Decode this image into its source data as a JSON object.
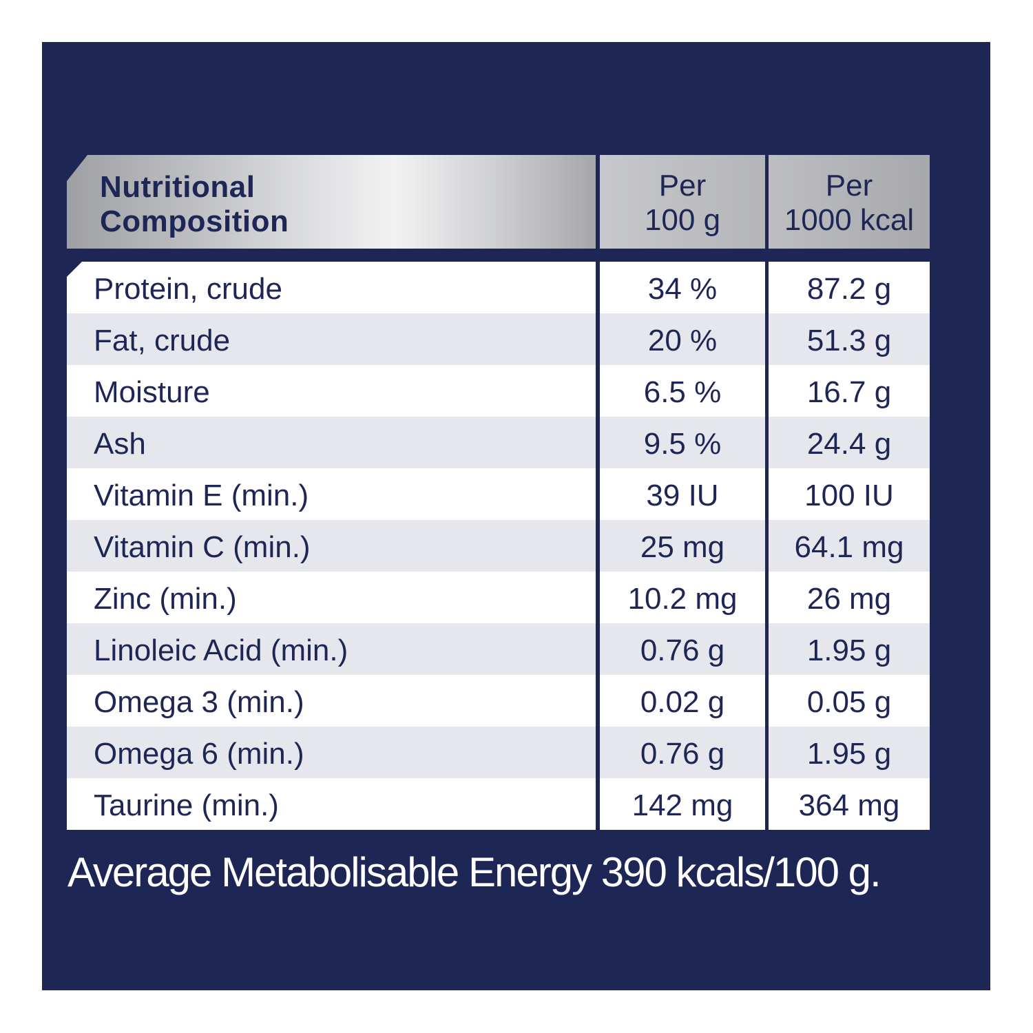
{
  "header": {
    "title_line1": "Nutritional",
    "title_line2": "Composition",
    "col2_line1": "Per",
    "col2_line2": "100 g",
    "col3_line1": "Per",
    "col3_line2": "1000 kcal"
  },
  "rows": [
    {
      "name": "Protein, crude",
      "per100g": "34 %",
      "per1000kcal": "87.2 g"
    },
    {
      "name": "Fat, crude",
      "per100g": "20 %",
      "per1000kcal": "51.3 g"
    },
    {
      "name": "Moisture",
      "per100g": "6.5 %",
      "per1000kcal": "16.7 g"
    },
    {
      "name": "Ash",
      "per100g": "9.5 %",
      "per1000kcal": "24.4 g"
    },
    {
      "name": "Vitamin E (min.)",
      "per100g": "39 IU",
      "per1000kcal": "100 IU"
    },
    {
      "name": "Vitamin C (min.)",
      "per100g": "25 mg",
      "per1000kcal": "64.1 mg"
    },
    {
      "name": "Zinc (min.)",
      "per100g": "10.2 mg",
      "per1000kcal": "26 mg"
    },
    {
      "name": "Linoleic Acid (min.)",
      "per100g": "0.76 g",
      "per1000kcal": "1.95 g"
    },
    {
      "name": "Omega 3 (min.)",
      "per100g": "0.02 g",
      "per1000kcal": "0.05 g"
    },
    {
      "name": "Omega 6 (min.)",
      "per100g": "0.76 g",
      "per1000kcal": "1.95 g"
    },
    {
      "name": "Taurine (min.)",
      "per100g": "142 mg",
      "per1000kcal": "364 mg"
    }
  ],
  "footer": "Average Metabolisable Energy 390 kcals/100 g.",
  "colors": {
    "background": "#1e2656",
    "text_dark": "#1e2656",
    "row_alt": "#e6e7ec",
    "footer_text": "#ffffff"
  }
}
